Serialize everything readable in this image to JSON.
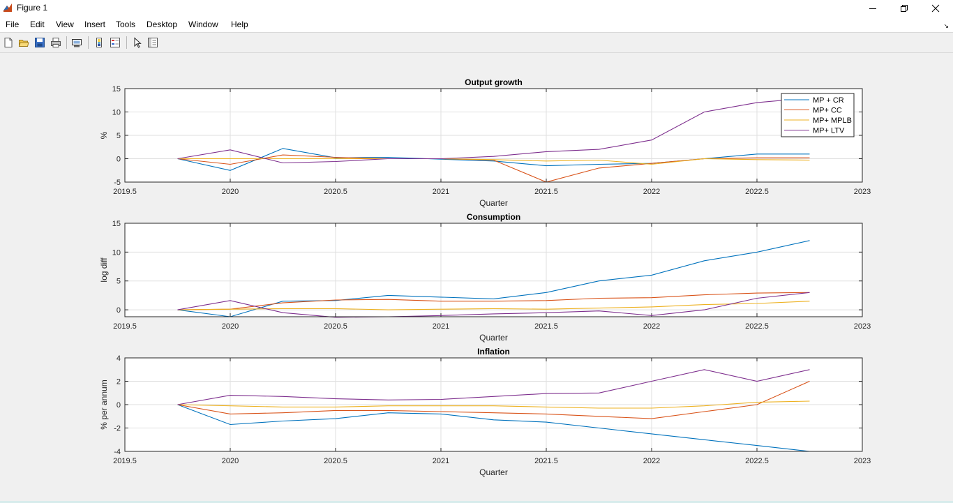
{
  "window": {
    "title": "Figure 1"
  },
  "menu": [
    "File",
    "Edit",
    "View",
    "Insert",
    "Tools",
    "Desktop",
    "Window",
    "Help"
  ],
  "toolbar": {
    "icons": [
      "new-figure-icon",
      "open-file-icon",
      "save-icon",
      "print-icon",
      "link-plot-icon",
      "colorbar-icon",
      "legend-icon",
      "edit-plot-pointer-icon",
      "property-inspector-icon"
    ]
  },
  "colors": {
    "s1": "#0072BD",
    "s2": "#D95319",
    "s3": "#EDB120",
    "s4": "#7E2F8E"
  },
  "chart_data": [
    {
      "type": "line",
      "title": "Output growth",
      "xlabel": "Quarter",
      "ylabel": "%",
      "xlim": [
        2019.5,
        2023
      ],
      "ylim": [
        -5,
        15
      ],
      "xticks": [
        "2019.5",
        "2020",
        "2020.5",
        "2021",
        "2021.5",
        "2022",
        "2022.5",
        "2023"
      ],
      "yticks": [
        "-5",
        "0",
        "5",
        "10",
        "15"
      ],
      "grid": true,
      "legend_position": "top-right",
      "x": [
        2019.75,
        2020,
        2020.25,
        2020.5,
        2020.75,
        2021,
        2021.25,
        2021.5,
        2021.75,
        2022,
        2022.25,
        2022.5,
        2022.75
      ],
      "series": [
        {
          "name": "MP + CR",
          "values": [
            0,
            -2.5,
            2.2,
            0.2,
            0.3,
            -0.1,
            -0.5,
            -1.5,
            -1.2,
            -1,
            0,
            1,
            1
          ]
        },
        {
          "name": "MP+ CC",
          "values": [
            0,
            -1.2,
            0.8,
            0.3,
            0,
            0,
            -0.3,
            -5,
            -2,
            -1,
            0,
            0.2,
            0.2
          ]
        },
        {
          "name": "MP+ MPLB",
          "values": [
            0,
            0,
            0,
            0,
            0,
            0,
            -0.2,
            -0.5,
            -0.3,
            -1.2,
            0,
            -0.2,
            -0.3
          ]
        },
        {
          "name": "MP+ LTV",
          "values": [
            0,
            1.9,
            -0.9,
            -0.6,
            0,
            0,
            0.5,
            1.5,
            2,
            4,
            10,
            12,
            13
          ]
        }
      ]
    },
    {
      "type": "line",
      "title": "Consumption",
      "xlabel": "Quarter",
      "ylabel": "log diff",
      "xlim": [
        2019.5,
        2023
      ],
      "ylim": [
        -1.2,
        15
      ],
      "xticks": [
        "2019.5",
        "2020",
        "2020.5",
        "2021",
        "2021.5",
        "2022",
        "2022.5",
        "2023"
      ],
      "yticks": [
        "0",
        "5",
        "10",
        "15"
      ],
      "grid": true,
      "x": [
        2019.75,
        2020,
        2020.25,
        2020.5,
        2020.75,
        2021,
        2021.25,
        2021.5,
        2021.75,
        2022,
        2022.25,
        2022.5,
        2022.75
      ],
      "series": [
        {
          "name": "MP + CR",
          "values": [
            0,
            -1.2,
            1.5,
            1.6,
            2.5,
            2.2,
            1.9,
            3,
            5,
            6,
            8.5,
            10,
            12
          ]
        },
        {
          "name": "MP+ CC",
          "values": [
            0,
            0.1,
            1.2,
            1.7,
            1.8,
            1.5,
            1.5,
            1.6,
            2,
            2.1,
            2.6,
            2.9,
            3
          ]
        },
        {
          "name": "MP+ MPLB",
          "values": [
            0,
            0.1,
            0.2,
            0.2,
            0,
            0.1,
            0.2,
            0.1,
            0.3,
            0.5,
            0.9,
            1.1,
            1.5
          ]
        },
        {
          "name": "MP+ LTV",
          "values": [
            0,
            1.6,
            -0.5,
            -1.3,
            -1.2,
            -1,
            -0.7,
            -0.5,
            -0.2,
            -1,
            0,
            2,
            3
          ]
        }
      ]
    },
    {
      "type": "line",
      "title": "Inflation",
      "xlabel": "Quarter",
      "ylabel": "% per annum",
      "xlim": [
        2019.5,
        2023
      ],
      "ylim": [
        -4,
        4
      ],
      "xticks": [
        "2019.5",
        "2020",
        "2020.5",
        "2021",
        "2021.5",
        "2022",
        "2022.5",
        "2023"
      ],
      "yticks": [
        "-4",
        "-2",
        "0",
        "2",
        "4"
      ],
      "grid": true,
      "x": [
        2019.75,
        2020,
        2020.25,
        2020.5,
        2020.75,
        2021,
        2021.25,
        2021.5,
        2021.75,
        2022,
        2022.25,
        2022.5,
        2022.75
      ],
      "series": [
        {
          "name": "MP + CR",
          "values": [
            0,
            -1.7,
            -1.4,
            -1.2,
            -0.7,
            -0.8,
            -1.3,
            -1.5,
            -2,
            -2.5,
            -3,
            -3.5,
            -4
          ]
        },
        {
          "name": "MP+ CC",
          "values": [
            0,
            -0.8,
            -0.7,
            -0.5,
            -0.5,
            -0.6,
            -0.7,
            -0.8,
            -1,
            -1.2,
            -0.6,
            0,
            2
          ]
        },
        {
          "name": "MP+ MPLB",
          "values": [
            0,
            -0.1,
            -0.2,
            -0.2,
            -0.1,
            -0.1,
            -0.1,
            -0.2,
            -0.3,
            -0.3,
            -0.1,
            0.2,
            0.3
          ]
        },
        {
          "name": "MP+ LTV",
          "values": [
            0,
            0.8,
            0.7,
            0.5,
            0.4,
            0.45,
            0.7,
            0.95,
            1,
            2,
            3,
            2,
            3
          ]
        }
      ]
    }
  ]
}
